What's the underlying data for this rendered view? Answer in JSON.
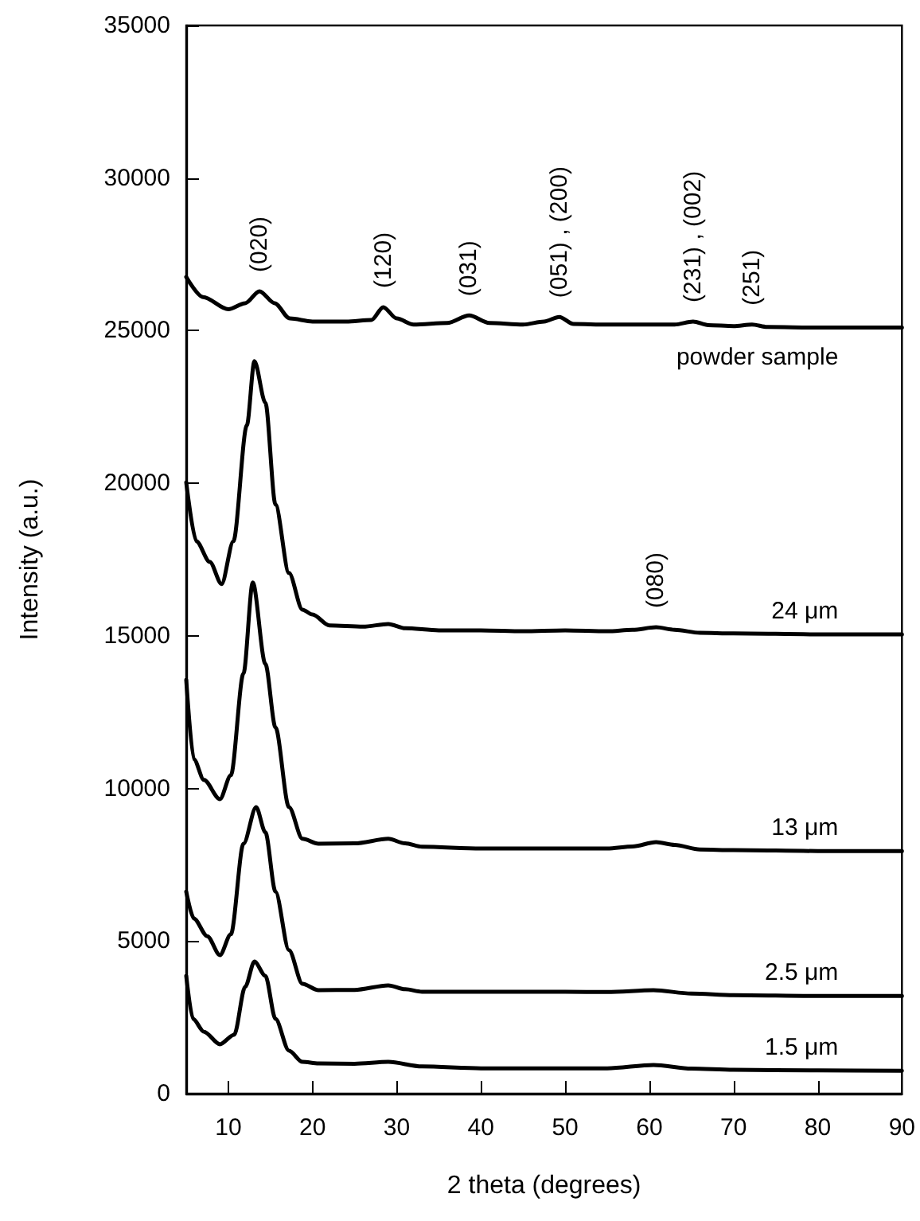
{
  "chart_data": {
    "type": "line",
    "xlabel": "2 theta (degrees)",
    "ylabel": "Intensity (a.u.)",
    "xlim": [
      5,
      90
    ],
    "xticks": [
      10,
      20,
      30,
      40,
      50,
      60,
      70,
      80,
      90
    ],
    "ylim": [
      0,
      35000
    ],
    "yticks": [
      0,
      5000,
      10000,
      15000,
      20000,
      25000,
      30000,
      35000
    ],
    "grid": false,
    "legend": false,
    "marker": "none",
    "line_style": "solid",
    "series": [
      {
        "name": "powder sample",
        "color": "#000000",
        "x": [
          5,
          7,
          10,
          12,
          13.7,
          15.5,
          17.3,
          20,
          24,
          27,
          28.4,
          30,
          32,
          36,
          38.6,
          41,
          45,
          47.5,
          49.3,
          51,
          55,
          60,
          63,
          65.2,
          67,
          70,
          72.2,
          74,
          80,
          85,
          90
        ],
        "values": [
          26760,
          26100,
          25700,
          25900,
          26290,
          25900,
          25400,
          25300,
          25300,
          25350,
          25770,
          25400,
          25200,
          25250,
          25500,
          25250,
          25200,
          25300,
          25450,
          25220,
          25200,
          25200,
          25200,
          25300,
          25180,
          25150,
          25200,
          25120,
          25100,
          25100,
          25100
        ]
      },
      {
        "name": "24 μm",
        "color": "#000000",
        "x": [
          5,
          6.2,
          7.8,
          9.2,
          10.6,
          12.2,
          13.1,
          14.4,
          15.6,
          17.2,
          18.8,
          20,
          22,
          26,
          29,
          31,
          35,
          40,
          45,
          50,
          55,
          58,
          60.8,
          63,
          66,
          70,
          80,
          90
        ],
        "values": [
          20030,
          18100,
          17420,
          16700,
          18100,
          21900,
          24000,
          22640,
          19300,
          17060,
          15860,
          15700,
          15340,
          15300,
          15390,
          15250,
          15180,
          15180,
          15150,
          15180,
          15150,
          15200,
          15280,
          15200,
          15100,
          15080,
          15050,
          15050
        ]
      },
      {
        "name": "13 μm",
        "color": "#000000",
        "x": [
          5,
          5.9,
          7.1,
          9,
          10.3,
          11.8,
          12.9,
          14.4,
          15.6,
          17.2,
          18.8,
          20.7,
          25,
          29,
          31,
          33,
          40,
          45,
          50,
          55,
          58,
          60.8,
          63,
          66,
          70,
          80,
          90
        ],
        "values": [
          13560,
          10960,
          10280,
          9650,
          10430,
          13770,
          16750,
          14080,
          12000,
          9390,
          8350,
          8190,
          8200,
          8350,
          8200,
          8090,
          8030,
          8030,
          8030,
          8030,
          8100,
          8240,
          8150,
          8000,
          7980,
          7950,
          7950
        ]
      },
      {
        "name": "2.5 μm",
        "color": "#000000",
        "x": [
          5,
          5.9,
          7.5,
          9,
          10.3,
          11.8,
          13.3,
          14.4,
          15.6,
          17.2,
          18.8,
          20.7,
          25,
          29,
          31,
          33,
          40,
          45,
          50,
          55,
          60.5,
          65,
          70,
          80,
          90
        ],
        "values": [
          6620,
          5740,
          5160,
          4540,
          5220,
          8190,
          9390,
          8560,
          6620,
          4700,
          3600,
          3390,
          3400,
          3550,
          3420,
          3340,
          3340,
          3340,
          3340,
          3330,
          3390,
          3280,
          3230,
          3200,
          3200
        ]
      },
      {
        "name": "1.5 μm",
        "color": "#000000",
        "x": [
          5,
          5.8,
          7.1,
          9,
          10.7,
          12,
          13.1,
          14.4,
          15.6,
          17.2,
          18.8,
          20.7,
          25,
          29,
          33,
          40,
          50,
          55,
          60.5,
          65,
          70,
          80,
          90
        ],
        "values": [
          3860,
          2450,
          2030,
          1620,
          1930,
          3500,
          4330,
          3860,
          2450,
          1410,
          1040,
          990,
          980,
          1040,
          890,
          830,
          830,
          830,
          940,
          820,
          780,
          760,
          750
        ]
      }
    ],
    "annotations": [
      {
        "text": "(020)",
        "x": 13.7,
        "y": 26290
      },
      {
        "text": "(120)",
        "x": 28.4,
        "y": 25770
      },
      {
        "text": "(031)",
        "x": 38.6,
        "y": 25500
      },
      {
        "text": "(051) , (200)",
        "x": 49.3,
        "y": 25450
      },
      {
        "text": "(231) , (002)",
        "x": 65.2,
        "y": 25300
      },
      {
        "text": "(251)",
        "x": 72.2,
        "y": 25200
      },
      {
        "text": "(080)",
        "x": 60.8,
        "y": 15280
      }
    ]
  }
}
